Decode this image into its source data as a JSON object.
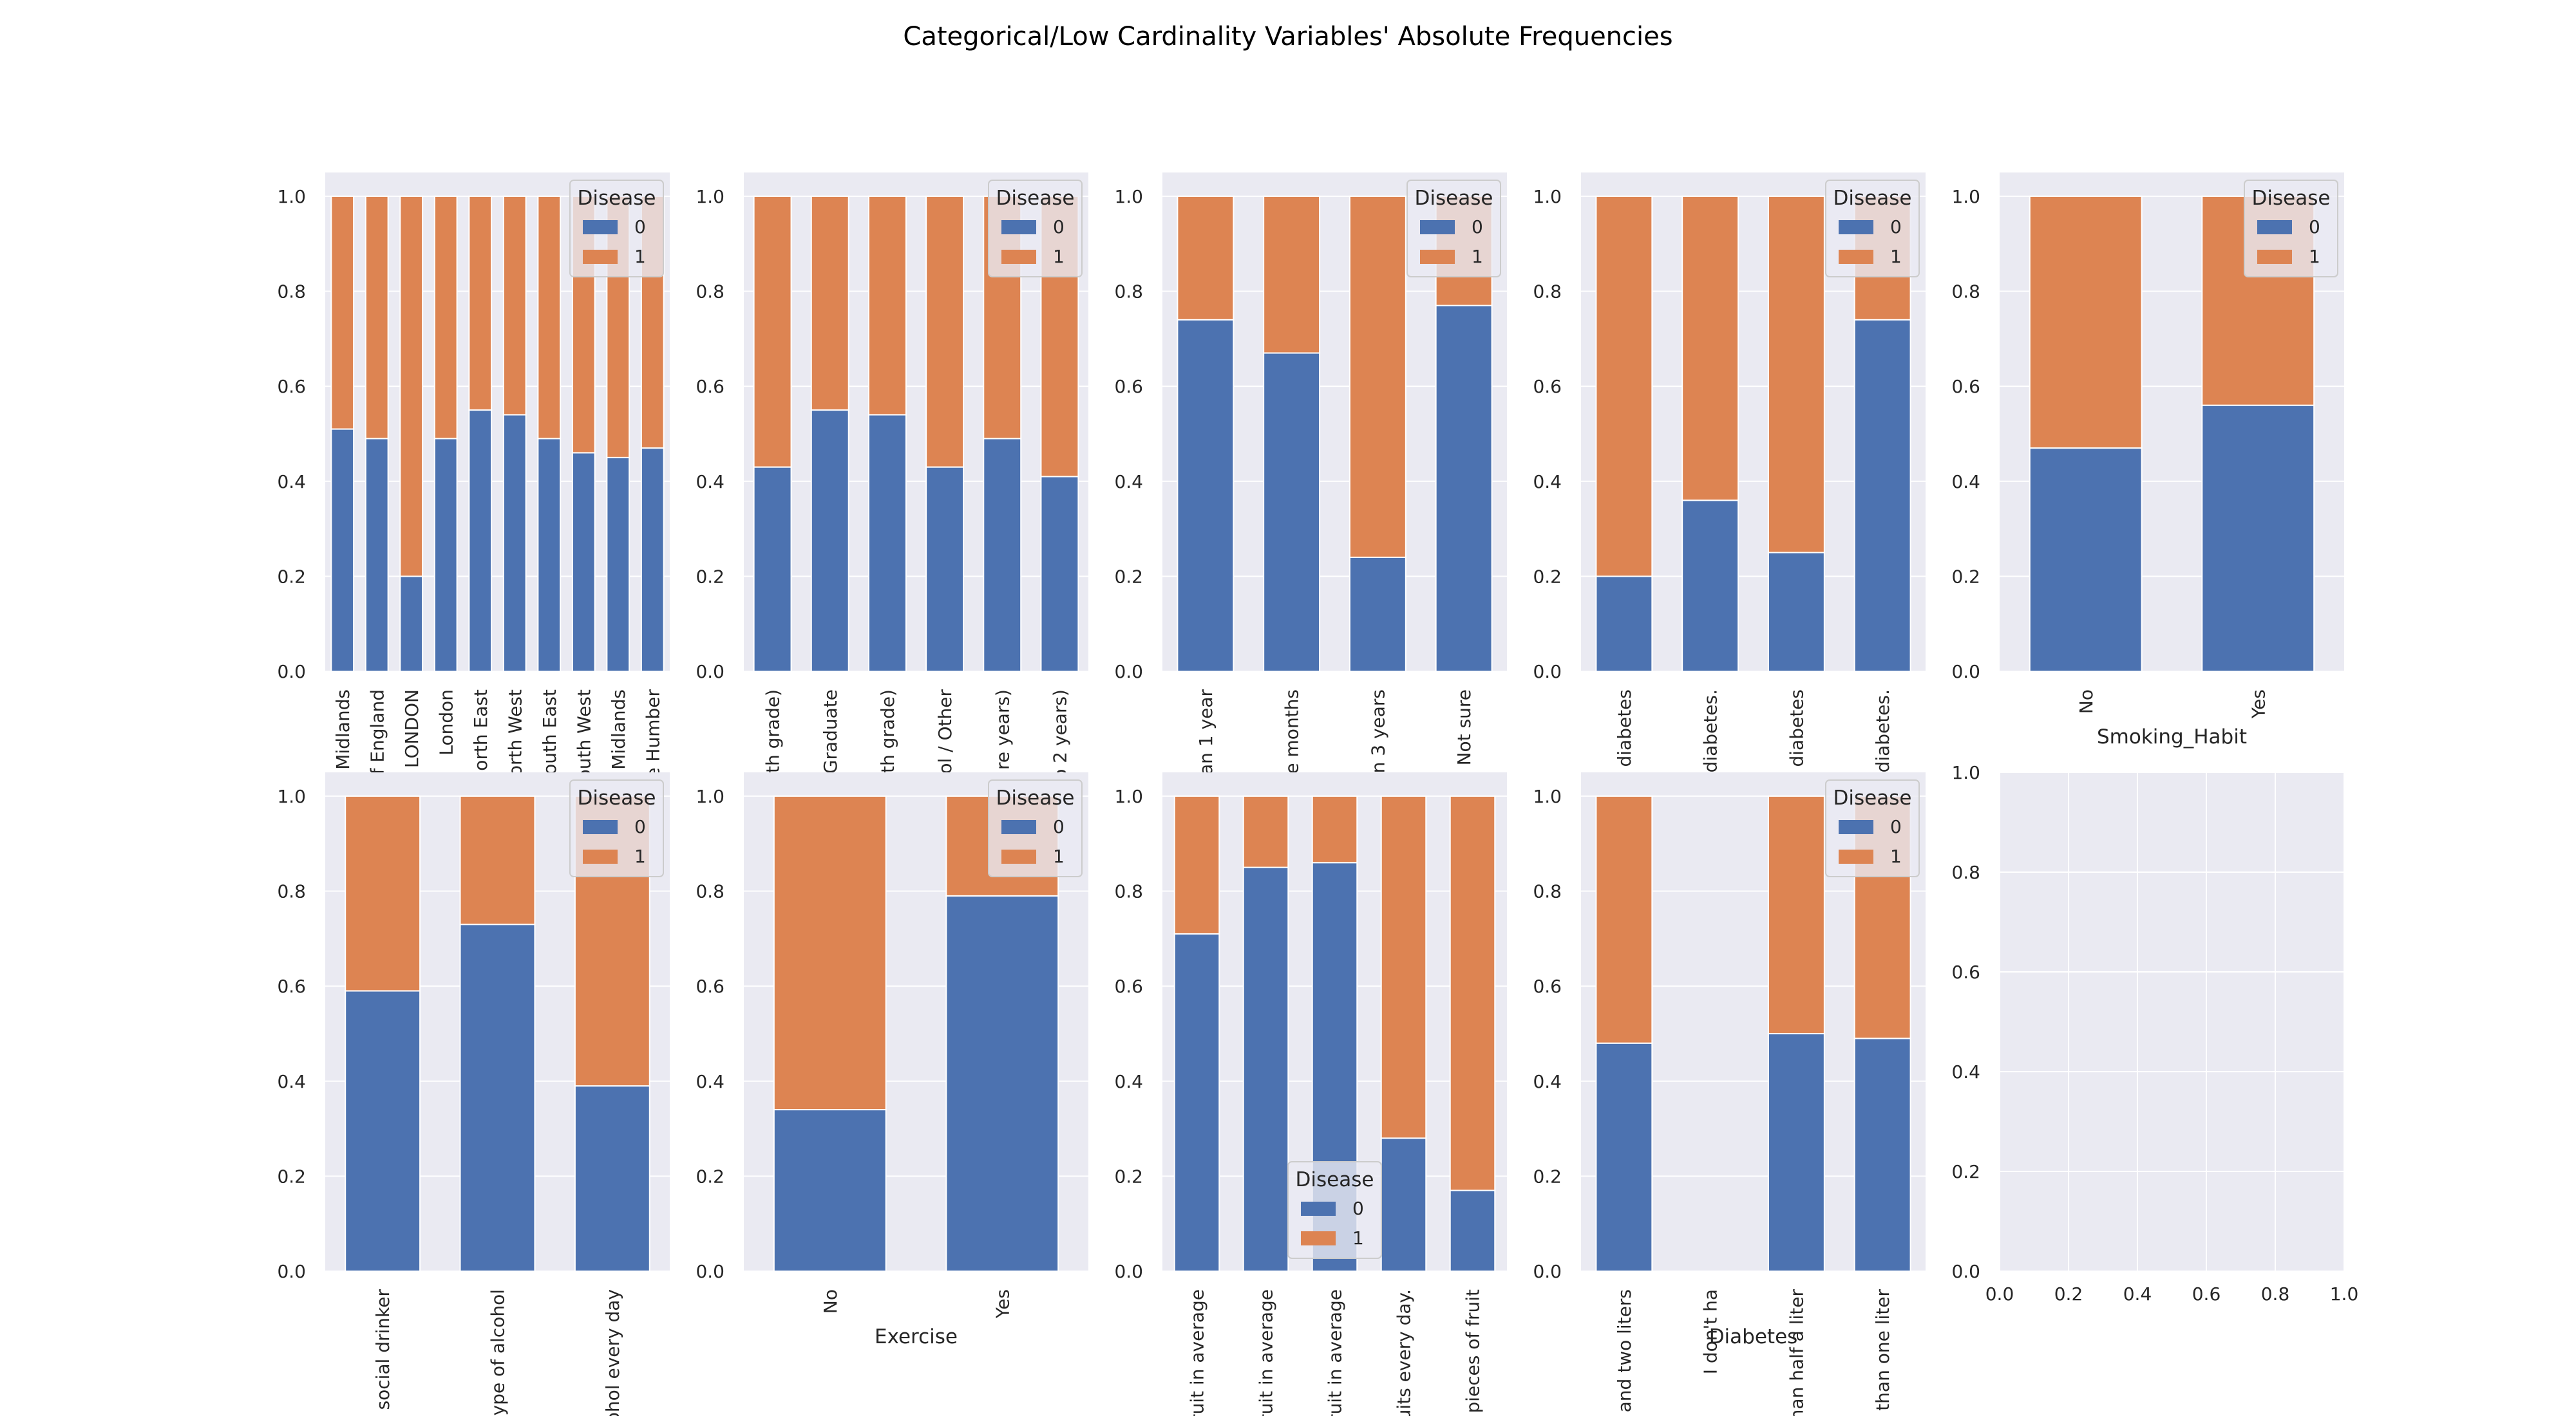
{
  "figure": {
    "title": "Categorical/Low Cardinality Variables' Absolute Frequencies"
  },
  "colors": {
    "series_0": "#4c72b0",
    "series_1": "#dd8452",
    "axes_bg": "#eaeaf2",
    "grid": "#ffffff"
  },
  "chart_data": [
    {
      "type": "bar",
      "stacked": true,
      "categories": [
        "Midlands",
        "f England",
        "LONDON",
        "London",
        "orth East",
        "orth West",
        "outh East",
        "outh West",
        "Midlands",
        "e Humber"
      ],
      "series": [
        {
          "name": "0",
          "values": [
            0.51,
            0.49,
            0.2,
            0.49,
            0.55,
            0.54,
            0.49,
            0.46,
            0.45,
            0.47
          ]
        },
        {
          "name": "1",
          "values": [
            0.49,
            0.51,
            0.8,
            0.51,
            0.45,
            0.46,
            0.51,
            0.54,
            0.55,
            0.53
          ]
        }
      ],
      "xlabel": "",
      "ylim": [
        0,
        1.05
      ],
      "yticks": [
        "0.0",
        "0.2",
        "0.4",
        "0.6",
        "0.8",
        "1.0"
      ],
      "legend": {
        "title": "Disease",
        "placement": "upper-right"
      }
    },
    {
      "type": "bar",
      "stacked": true,
      "categories": [
        "th grade)",
        "Graduate",
        "th grade)",
        "ol / Other",
        "re years)",
        "o 2 years)"
      ],
      "series": [
        {
          "name": "0",
          "values": [
            0.43,
            0.55,
            0.54,
            0.43,
            0.49,
            0.41
          ]
        },
        {
          "name": "1",
          "values": [
            0.57,
            0.45,
            0.46,
            0.57,
            0.51,
            0.59
          ]
        }
      ],
      "xlabel": "",
      "ylim": [
        0,
        1.05
      ],
      "yticks": [
        "0.0",
        "0.2",
        "0.4",
        "0.6",
        "0.8",
        "1.0"
      ],
      "legend": {
        "title": "Disease",
        "placement": "upper-right"
      }
    },
    {
      "type": "bar",
      "stacked": true,
      "categories": [
        "an 1 year",
        "e months",
        "n 3 years",
        "Not sure"
      ],
      "series": [
        {
          "name": "0",
          "values": [
            0.74,
            0.67,
            0.24,
            0.77
          ]
        },
        {
          "name": "1",
          "values": [
            0.26,
            0.33,
            0.76,
            0.23
          ]
        }
      ],
      "xlabel": "",
      "ylim": [
        0,
        1.05
      ],
      "yticks": [
        "0.0",
        "0.2",
        "0.4",
        "0.6",
        "0.8",
        "1.0"
      ],
      "legend": {
        "title": "Disease",
        "placement": "upper-right"
      }
    },
    {
      "type": "bar",
      "stacked": true,
      "categories": [
        "diabetes",
        "diabetes.",
        "diabetes",
        "diabetes."
      ],
      "series": [
        {
          "name": "0",
          "values": [
            0.2,
            0.36,
            0.25,
            0.74
          ]
        },
        {
          "name": "1",
          "values": [
            0.8,
            0.64,
            0.75,
            0.26
          ]
        }
      ],
      "xlabel": "",
      "ylim": [
        0,
        1.05
      ],
      "yticks": [
        "0.0",
        "0.2",
        "0.4",
        "0.6",
        "0.8",
        "1.0"
      ],
      "legend": {
        "title": "Disease",
        "placement": "upper-right"
      }
    },
    {
      "type": "bar",
      "stacked": true,
      "categories": [
        "No",
        "Yes"
      ],
      "series": [
        {
          "name": "0",
          "values": [
            0.47,
            0.56
          ]
        },
        {
          "name": "1",
          "values": [
            0.53,
            0.44
          ]
        }
      ],
      "xlabel": "Smoking_Habit",
      "ylim": [
        0,
        1.05
      ],
      "yticks": [
        "0.0",
        "0.2",
        "0.4",
        "0.6",
        "0.8",
        "1.0"
      ],
      "legend": {
        "title": "Disease",
        "placement": "upper-right"
      }
    },
    {
      "type": "bar",
      "stacked": true,
      "categories": [
        "a social drinker",
        "y type of alcohol",
        "cohol every day"
      ],
      "series": [
        {
          "name": "0",
          "values": [
            0.59,
            0.73,
            0.39
          ]
        },
        {
          "name": "1",
          "values": [
            0.41,
            0.27,
            0.61
          ]
        }
      ],
      "xlabel": "",
      "ylim": [
        0,
        1.05
      ],
      "yticks": [
        "0.0",
        "0.2",
        "0.4",
        "0.6",
        "0.8",
        "1.0"
      ],
      "legend": {
        "title": "Disease",
        "placement": "upper-right"
      }
    },
    {
      "type": "bar",
      "stacked": true,
      "categories": [
        "No",
        "Yes"
      ],
      "series": [
        {
          "name": "0",
          "values": [
            0.34,
            0.79
          ]
        },
        {
          "name": "1",
          "values": [
            0.66,
            0.21
          ]
        }
      ],
      "xlabel": "Exercise",
      "ylim": [
        0,
        1.05
      ],
      "yticks": [
        "0.0",
        "0.2",
        "0.4",
        "0.6",
        "0.8",
        "1.0"
      ],
      "legend": {
        "title": "Disease",
        "placement": "upper-right"
      }
    },
    {
      "type": "bar",
      "stacked": true,
      "categories": [
        "f fruit in average",
        "f fruit in average",
        "f fruit in average",
        "fruits every day.",
        "ix pieces of fruit"
      ],
      "series": [
        {
          "name": "0",
          "values": [
            0.71,
            0.85,
            0.86,
            0.28,
            0.17
          ]
        },
        {
          "name": "1",
          "values": [
            0.29,
            0.15,
            0.14,
            0.72,
            0.83
          ]
        }
      ],
      "xlabel": "",
      "ylim": [
        0,
        1.05
      ],
      "yticks": [
        "0.0",
        "0.2",
        "0.4",
        "0.6",
        "0.8",
        "1.0"
      ],
      "legend": {
        "title": "Disease",
        "placement": "lower-center"
      }
    },
    {
      "type": "bar",
      "stacked": true,
      "categories": [
        "er and two liters",
        "I don't ha",
        "s than half a liter",
        "ss than one liter"
      ],
      "series": [
        {
          "name": "0",
          "values": [
            0.48,
            0,
            0.5,
            0.49
          ]
        },
        {
          "name": "1",
          "values": [
            0.52,
            0,
            0.5,
            0.51
          ]
        }
      ],
      "xlabel": "Diabetes",
      "ylim": [
        0,
        1.05
      ],
      "yticks": [
        "0.0",
        "0.2",
        "0.4",
        "0.6",
        "0.8",
        "1.0"
      ],
      "legend": {
        "title": "Disease",
        "placement": "upper-right"
      }
    },
    {
      "type": "empty",
      "xlim": [
        0,
        1
      ],
      "ylim": [
        0,
        1
      ],
      "xticks": [
        "0.0",
        "0.2",
        "0.4",
        "0.6",
        "0.8",
        "1.0"
      ],
      "yticks": [
        "0.0",
        "0.2",
        "0.4",
        "0.6",
        "0.8",
        "1.0"
      ]
    }
  ]
}
